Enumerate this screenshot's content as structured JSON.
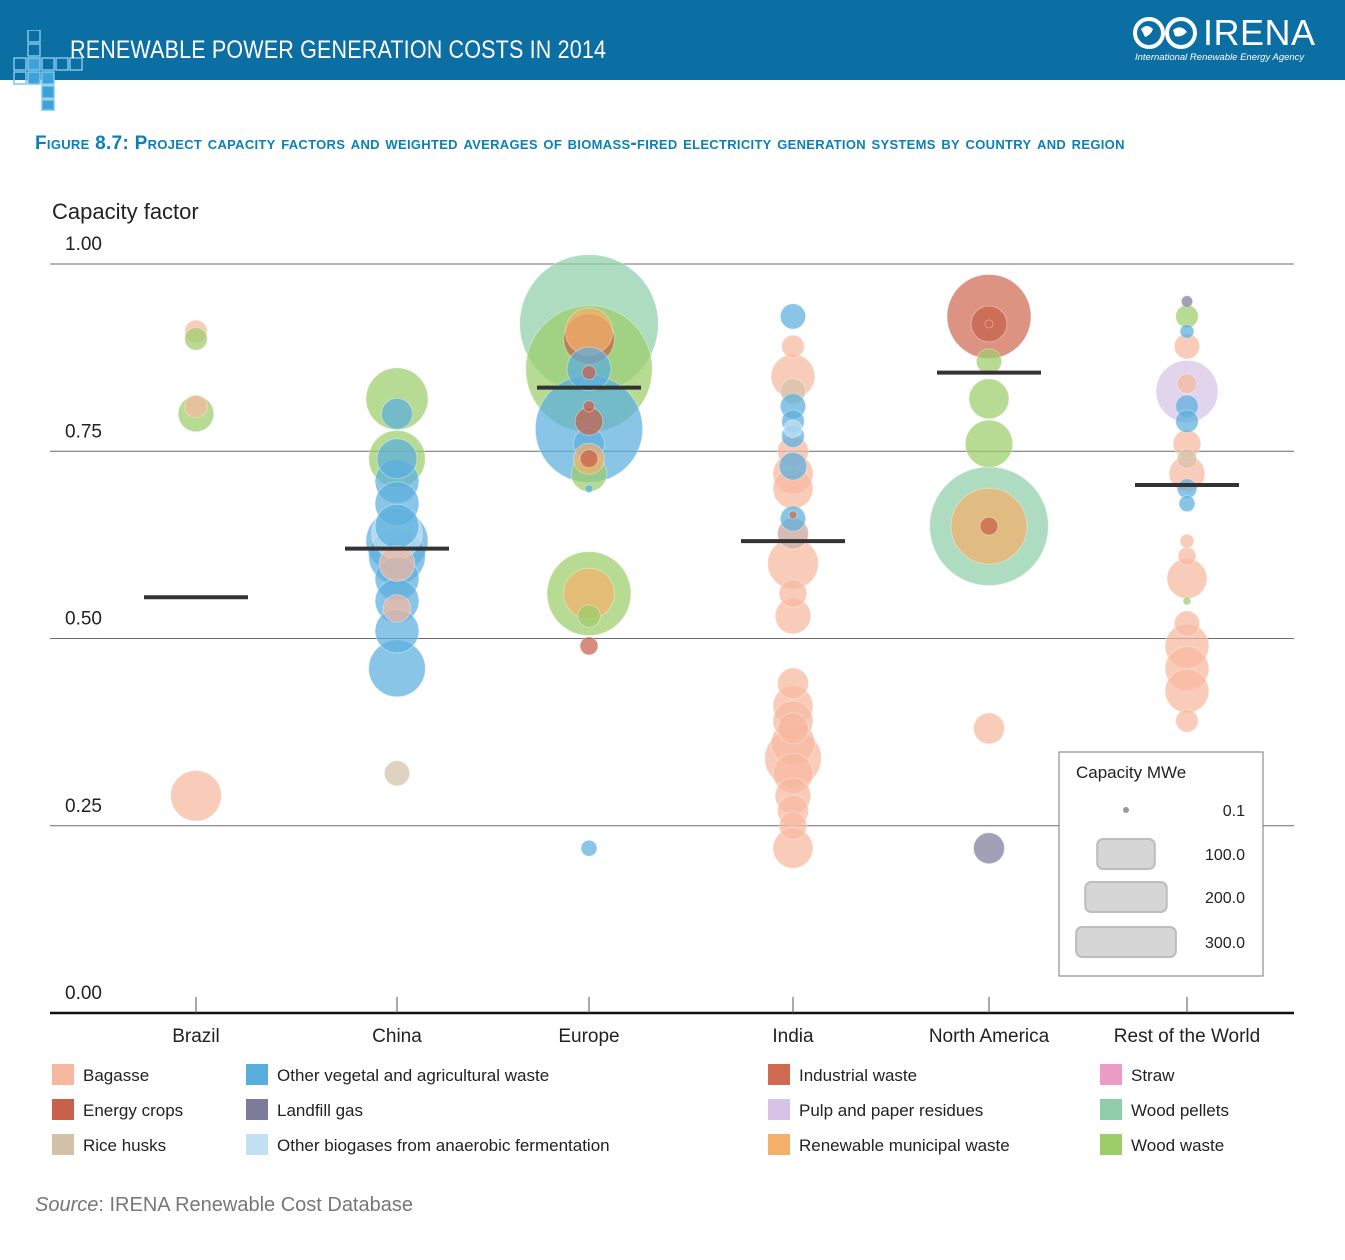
{
  "header": {
    "title": "RENEWABLE POWER GENERATION COSTS IN 2014",
    "logo_text": "IRENA",
    "logo_subtitle": "International Renewable Energy Agency"
  },
  "figure_title": "Figure 8.7: Project capacity factors and weighted averages of biomass-fired electricity generation systems by country and region",
  "source": {
    "label": "Source",
    "text": ": IRENA Renewable Cost Database"
  },
  "colors": {
    "Bagasse": "#f6b89f",
    "Energy crops": "#c8604a",
    "Rice husks": "#d4c1a9",
    "Other vegetal and agricultural waste": "#5aaede",
    "Landfill gas": "#7c7c9a",
    "Other biogases from anaerobic fermentation": "#c3e0f2",
    "Industrial waste": "#cf6a50",
    "Pulp and paper residues": "#d7c3e6",
    "Renewable municipal waste": "#f4b06a",
    "Straw": "#ec9cc7",
    "Wood pellets": "#8fcea9",
    "Wood waste": "#9ccd69",
    "average_line": "#333333",
    "header": "#0b6fa4",
    "title": "#0b7fb8"
  },
  "chart_data": {
    "type": "scatter",
    "title": "",
    "ylabel": "Capacity factor",
    "xlabel": "",
    "ylim": [
      0,
      1
    ],
    "yticks": [
      "0.00",
      "0.25",
      "0.50",
      "0.75",
      "1.00"
    ],
    "categories": [
      "Brazil",
      "China",
      "Europe",
      "India",
      "North America",
      "Rest of the World"
    ],
    "weighted_averages": [
      0.555,
      0.62,
      0.835,
      0.63,
      0.855,
      0.705
    ],
    "size_legend": {
      "title": "Capacity MWe",
      "labels": [
        "0.1",
        "100.0",
        "200.0",
        "300.0"
      ],
      "values": [
        0.1,
        100,
        200,
        300
      ]
    },
    "legend": [
      "Bagasse",
      "Other vegetal and agricultural waste",
      "Industrial waste",
      "Straw",
      "Energy crops",
      "Landfill gas",
      "Pulp and paper residues",
      "Wood pellets",
      "Rice husks",
      "Other biogases from anaerobic fermentation",
      "Renewable municipal waste",
      "Wood waste"
    ],
    "points": [
      {
        "c": "Brazil",
        "f": "Bagasse",
        "y": 0.91,
        "mw": 8
      },
      {
        "c": "Brazil",
        "f": "Wood waste",
        "y": 0.9,
        "mw": 8
      },
      {
        "c": "Brazil",
        "f": "Wood waste",
        "y": 0.8,
        "mw": 20
      },
      {
        "c": "Brazil",
        "f": "Bagasse",
        "y": 0.81,
        "mw": 8
      },
      {
        "c": "Brazil",
        "f": "Bagasse",
        "y": 0.29,
        "mw": 40
      },
      {
        "c": "China",
        "f": "Wood waste",
        "y": 0.82,
        "mw": 60
      },
      {
        "c": "China",
        "f": "Other vegetal and agricultural waste",
        "y": 0.8,
        "mw": 15
      },
      {
        "c": "China",
        "f": "Wood waste",
        "y": 0.74,
        "mw": 50
      },
      {
        "c": "China",
        "f": "Other vegetal and agricultural waste",
        "y": 0.74,
        "mw": 25
      },
      {
        "c": "China",
        "f": "Other vegetal and agricultural waste",
        "y": 0.71,
        "mw": 30
      },
      {
        "c": "China",
        "f": "Other vegetal and agricultural waste",
        "y": 0.68,
        "mw": 30
      },
      {
        "c": "China",
        "f": "Other vegetal and agricultural waste",
        "y": 0.65,
        "mw": 30
      },
      {
        "c": "China",
        "f": "Other vegetal and agricultural waste",
        "y": 0.63,
        "mw": 60
      },
      {
        "c": "China",
        "f": "Other biogases from anaerobic fermentation",
        "y": 0.64,
        "mw": 40
      },
      {
        "c": "China",
        "f": "Other vegetal and agricultural waste",
        "y": 0.61,
        "mw": 50
      },
      {
        "c": "China",
        "f": "Bagasse",
        "y": 0.6,
        "mw": 20
      },
      {
        "c": "China",
        "f": "Other vegetal and agricultural waste",
        "y": 0.58,
        "mw": 30
      },
      {
        "c": "China",
        "f": "Other vegetal and agricultural waste",
        "y": 0.55,
        "mw": 30
      },
      {
        "c": "China",
        "f": "Bagasse",
        "y": 0.54,
        "mw": 12
      },
      {
        "c": "China",
        "f": "Other vegetal and agricultural waste",
        "y": 0.51,
        "mw": 30
      },
      {
        "c": "China",
        "f": "Other vegetal and agricultural waste",
        "y": 0.46,
        "mw": 50
      },
      {
        "c": "China",
        "f": "Rice husks",
        "y": 0.32,
        "mw": 10
      },
      {
        "c": "Europe",
        "f": "Wood pellets",
        "y": 0.92,
        "mw": 300
      },
      {
        "c": "Europe",
        "f": "Wood waste",
        "y": 0.86,
        "mw": 250
      },
      {
        "c": "Europe",
        "f": "Renewable municipal waste",
        "y": 0.91,
        "mw": 35
      },
      {
        "c": "Europe",
        "f": "Energy crops",
        "y": 0.9,
        "mw": 40
      },
      {
        "c": "Europe",
        "f": "Other vegetal and agricultural waste",
        "y": 0.86,
        "mw": 30
      },
      {
        "c": "Europe",
        "f": "Other vegetal and agricultural waste",
        "y": 0.78,
        "mw": 180
      },
      {
        "c": "Europe",
        "f": "Energy crops",
        "y": 0.855,
        "mw": 3
      },
      {
        "c": "Europe",
        "f": "Energy crops",
        "y": 0.81,
        "mw": 2
      },
      {
        "c": "Europe",
        "f": "Energy crops",
        "y": 0.79,
        "mw": 12
      },
      {
        "c": "Europe",
        "f": "Other vegetal and agricultural waste",
        "y": 0.76,
        "mw": 15
      },
      {
        "c": "Europe",
        "f": "Renewable municipal waste",
        "y": 0.74,
        "mw": 15
      },
      {
        "c": "Europe",
        "f": "Energy crops",
        "y": 0.74,
        "mw": 5
      },
      {
        "c": "Europe",
        "f": "Wood waste",
        "y": 0.72,
        "mw": 20
      },
      {
        "c": "Europe",
        "f": "Other vegetal and agricultural waste",
        "y": 0.7,
        "mw": 1
      },
      {
        "c": "Europe",
        "f": "Wood waste",
        "y": 0.56,
        "mw": 110
      },
      {
        "c": "Europe",
        "f": "Renewable municipal waste",
        "y": 0.56,
        "mw": 40
      },
      {
        "c": "Europe",
        "f": "Wood waste",
        "y": 0.53,
        "mw": 8
      },
      {
        "c": "Europe",
        "f": "Energy crops",
        "y": 0.49,
        "mw": 5
      },
      {
        "c": "Europe",
        "f": "Other vegetal and agricultural waste",
        "y": 0.22,
        "mw": 4
      },
      {
        "c": "India",
        "f": "Other vegetal and agricultural waste",
        "y": 0.93,
        "mw": 10
      },
      {
        "c": "India",
        "f": "Bagasse",
        "y": 0.89,
        "mw": 8
      },
      {
        "c": "India",
        "f": "Bagasse",
        "y": 0.85,
        "mw": 30
      },
      {
        "c": "India",
        "f": "Rice husks",
        "y": 0.83,
        "mw": 10
      },
      {
        "c": "India",
        "f": "Other vegetal and agricultural waste",
        "y": 0.81,
        "mw": 10
      },
      {
        "c": "India",
        "f": "Other vegetal and agricultural waste",
        "y": 0.79,
        "mw": 8
      },
      {
        "c": "India",
        "f": "Other biogases from anaerobic fermentation",
        "y": 0.78,
        "mw": 5
      },
      {
        "c": "India",
        "f": "Other vegetal and agricultural waste",
        "y": 0.77,
        "mw": 8
      },
      {
        "c": "India",
        "f": "Bagasse",
        "y": 0.75,
        "mw": 15
      },
      {
        "c": "India",
        "f": "Other vegetal and agricultural waste",
        "y": 0.73,
        "mw": 12
      },
      {
        "c": "India",
        "f": "Bagasse",
        "y": 0.72,
        "mw": 25
      },
      {
        "c": "India",
        "f": "Bagasse",
        "y": 0.7,
        "mw": 25
      },
      {
        "c": "India",
        "f": "Other vegetal and agricultural waste",
        "y": 0.66,
        "mw": 10
      },
      {
        "c": "India",
        "f": "Industrial waste",
        "y": 0.665,
        "mw": 1
      },
      {
        "c": "India",
        "f": "Other vegetal and agricultural waste",
        "y": 0.64,
        "mw": 15
      },
      {
        "c": "India",
        "f": "Bagasse",
        "y": 0.64,
        "mw": 15
      },
      {
        "c": "India",
        "f": "Bagasse",
        "y": 0.6,
        "mw": 40
      },
      {
        "c": "India",
        "f": "Bagasse",
        "y": 0.56,
        "mw": 12
      },
      {
        "c": "India",
        "f": "Bagasse",
        "y": 0.53,
        "mw": 20
      },
      {
        "c": "India",
        "f": "Bagasse",
        "y": 0.44,
        "mw": 15
      },
      {
        "c": "India",
        "f": "Bagasse",
        "y": 0.41,
        "mw": 25
      },
      {
        "c": "India",
        "f": "Bagasse",
        "y": 0.39,
        "mw": 25
      },
      {
        "c": "India",
        "f": "Bagasse",
        "y": 0.38,
        "mw": 15
      },
      {
        "c": "India",
        "f": "Bagasse",
        "y": 0.36,
        "mw": 30
      },
      {
        "c": "India",
        "f": "Bagasse",
        "y": 0.34,
        "mw": 50
      },
      {
        "c": "India",
        "f": "Bagasse",
        "y": 0.32,
        "mw": 25
      },
      {
        "c": "India",
        "f": "Bagasse",
        "y": 0.29,
        "mw": 20
      },
      {
        "c": "India",
        "f": "Bagasse",
        "y": 0.27,
        "mw": 15
      },
      {
        "c": "India",
        "f": "Bagasse",
        "y": 0.25,
        "mw": 12
      },
      {
        "c": "India",
        "f": "Bagasse",
        "y": 0.22,
        "mw": 25
      },
      {
        "c": "North America",
        "f": "Industrial waste",
        "y": 0.93,
        "mw": 110
      },
      {
        "c": "North America",
        "f": "Energy crops",
        "y": 0.92,
        "mw": 20
      },
      {
        "c": "North America",
        "f": "Industrial waste",
        "y": 0.92,
        "mw": 1
      },
      {
        "c": "North America",
        "f": "Wood waste",
        "y": 0.87,
        "mw": 10
      },
      {
        "c": "North America",
        "f": "Wood waste",
        "y": 0.82,
        "mw": 25
      },
      {
        "c": "North America",
        "f": "Wood waste",
        "y": 0.76,
        "mw": 35
      },
      {
        "c": "North America",
        "f": "Wood pellets",
        "y": 0.65,
        "mw": 220
      },
      {
        "c": "North America",
        "f": "Renewable municipal waste",
        "y": 0.65,
        "mw": 90
      },
      {
        "c": "North America",
        "f": "Energy crops",
        "y": 0.65,
        "mw": 5
      },
      {
        "c": "North America",
        "f": "Bagasse",
        "y": 0.38,
        "mw": 15
      },
      {
        "c": "North America",
        "f": "Landfill gas",
        "y": 0.22,
        "mw": 15
      },
      {
        "c": "Rest of the World",
        "f": "Landfill gas",
        "y": 0.95,
        "mw": 2
      },
      {
        "c": "Rest of the World",
        "f": "Wood waste",
        "y": 0.93,
        "mw": 8
      },
      {
        "c": "Rest of the World",
        "f": "Other vegetal and agricultural waste",
        "y": 0.91,
        "mw": 3
      },
      {
        "c": "Rest of the World",
        "f": "Bagasse",
        "y": 0.89,
        "mw": 10
      },
      {
        "c": "Rest of the World",
        "f": "Pulp and paper residues",
        "y": 0.83,
        "mw": 60
      },
      {
        "c": "Rest of the World",
        "f": "Bagasse",
        "y": 0.84,
        "mw": 6
      },
      {
        "c": "Rest of the World",
        "f": "Other vegetal and agricultural waste",
        "y": 0.81,
        "mw": 8
      },
      {
        "c": "Rest of the World",
        "f": "Other vegetal and agricultural waste",
        "y": 0.79,
        "mw": 8
      },
      {
        "c": "Rest of the World",
        "f": "Bagasse",
        "y": 0.76,
        "mw": 12
      },
      {
        "c": "Rest of the World",
        "f": "Rice husks",
        "y": 0.74,
        "mw": 6
      },
      {
        "c": "Rest of the World",
        "f": "Bagasse",
        "y": 0.72,
        "mw": 20
      },
      {
        "c": "Rest of the World",
        "f": "Other vegetal and agricultural waste",
        "y": 0.7,
        "mw": 6
      },
      {
        "c": "Rest of the World",
        "f": "Other vegetal and agricultural waste",
        "y": 0.68,
        "mw": 4
      },
      {
        "c": "Rest of the World",
        "f": "Bagasse",
        "y": 0.63,
        "mw": 3
      },
      {
        "c": "Rest of the World",
        "f": "Bagasse",
        "y": 0.61,
        "mw": 5
      },
      {
        "c": "Rest of the World",
        "f": "Bagasse",
        "y": 0.58,
        "mw": 25
      },
      {
        "c": "Rest of the World",
        "f": "Wood waste",
        "y": 0.55,
        "mw": 1
      },
      {
        "c": "Rest of the World",
        "f": "Bagasse",
        "y": 0.52,
        "mw": 10
      },
      {
        "c": "Rest of the World",
        "f": "Bagasse",
        "y": 0.49,
        "mw": 30
      },
      {
        "c": "Rest of the World",
        "f": "Bagasse",
        "y": 0.46,
        "mw": 30
      },
      {
        "c": "Rest of the World",
        "f": "Bagasse",
        "y": 0.43,
        "mw": 30
      },
      {
        "c": "Rest of the World",
        "f": "Bagasse",
        "y": 0.39,
        "mw": 8
      }
    ]
  }
}
